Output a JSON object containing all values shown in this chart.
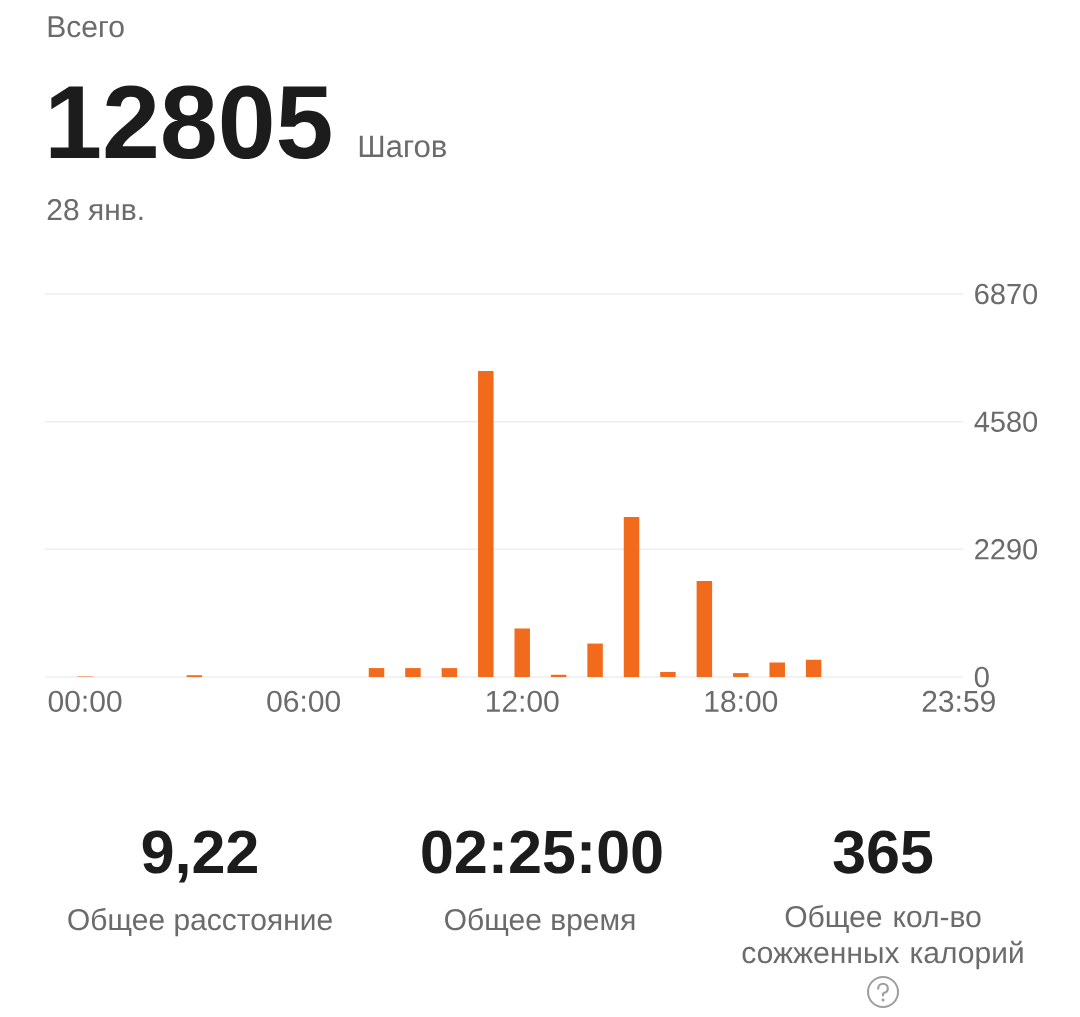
{
  "chart_data": {
    "type": "bar",
    "title": "Всего",
    "annotations": [
      "12805",
      "Шагов",
      "28 янв.",
      "9,22",
      "Общее расстояние",
      "02:25:00",
      "Общее время",
      "365",
      "Общее кол-во сожженных калорий"
    ],
    "x": [
      0,
      3,
      8,
      9,
      10,
      11,
      12,
      13,
      14,
      15,
      16,
      17,
      18,
      19,
      20
    ],
    "values": [
      10,
      30,
      160,
      160,
      160,
      5490,
      870,
      40,
      600,
      2870,
      90,
      1720,
      70,
      260,
      310
    ],
    "color": "#f26b1d",
    "xlim": [
      -1.1,
      24.1
    ],
    "xticks": [
      {
        "value": 0,
        "label": "00:00"
      },
      {
        "value": 6,
        "label": "06:00"
      },
      {
        "value": 12,
        "label": "12:00"
      },
      {
        "value": 18,
        "label": "18:00"
      },
      {
        "value": 23.983,
        "label": "23:59"
      }
    ],
    "ylim": [
      0,
      6870
    ],
    "yticks": [
      0,
      2290,
      4580,
      6870
    ],
    "grid": "y"
  }
}
